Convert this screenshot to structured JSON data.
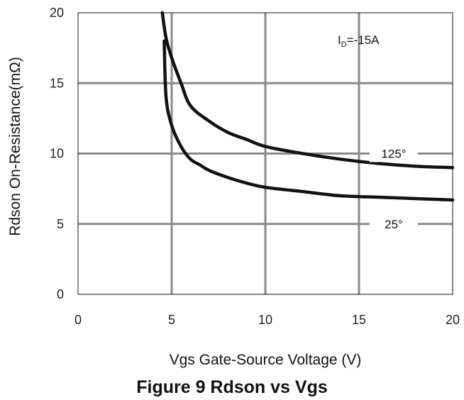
{
  "caption": "Figure 9 Rdson vs Vgs",
  "chart_data": {
    "type": "line",
    "xlabel": "Vgs Gate-Source Voltage (V)",
    "ylabel": "Rdson On-Resistance(mΩ)",
    "xlim": [
      0,
      20
    ],
    "ylim": [
      0,
      20
    ],
    "x_ticks": [
      0,
      5,
      10,
      15,
      20
    ],
    "y_ticks": [
      0,
      5,
      10,
      15,
      20
    ],
    "grid": true,
    "condition_label": "ID=-15A",
    "condition_main": "I",
    "condition_sub": "D",
    "condition_rest": "=-15A",
    "series": [
      {
        "name": "125°",
        "x": [
          4.5,
          4.7,
          5.0,
          5.5,
          6.0,
          7.0,
          8.0,
          9.0,
          10.0,
          12.0,
          14.0,
          16.0,
          18.0,
          20.0
        ],
        "y": [
          20.0,
          18.2,
          16.8,
          15.0,
          13.4,
          12.3,
          11.5,
          11.0,
          10.5,
          10.0,
          9.6,
          9.3,
          9.1,
          9.0
        ]
      },
      {
        "name": "25°",
        "x": [
          4.6,
          4.7,
          5.0,
          5.5,
          6.0,
          6.5,
          7.0,
          8.0,
          9.0,
          10.0,
          12.0,
          14.0,
          16.0,
          18.0,
          20.0
        ],
        "y": [
          18.0,
          14.0,
          12.0,
          10.5,
          9.6,
          9.2,
          8.8,
          8.3,
          7.9,
          7.6,
          7.3,
          7.0,
          6.9,
          6.8,
          6.7
        ]
      }
    ]
  }
}
